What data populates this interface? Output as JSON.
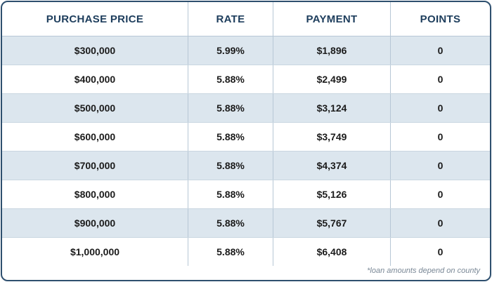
{
  "table": {
    "headers": {
      "purchase_price": "PURCHASE PRICE",
      "rate": "RATE",
      "payment": "PAYMENT",
      "points": "POINTS"
    },
    "rows": [
      {
        "purchase_price": "$300,000",
        "rate": "5.99%",
        "payment": "$1,896",
        "points": "0"
      },
      {
        "purchase_price": "$400,000",
        "rate": "5.88%",
        "payment": "$2,499",
        "points": "0"
      },
      {
        "purchase_price": "$500,000",
        "rate": "5.88%",
        "payment": "$3,124",
        "points": "0"
      },
      {
        "purchase_price": "$600,000",
        "rate": "5.88%",
        "payment": "$3,749",
        "points": "0"
      },
      {
        "purchase_price": "$700,000",
        "rate": "5.88%",
        "payment": "$4,374",
        "points": "0"
      },
      {
        "purchase_price": "$800,000",
        "rate": "5.88%",
        "payment": "$5,126",
        "points": "0"
      },
      {
        "purchase_price": "$900,000",
        "rate": "5.88%",
        "payment": "$5,767",
        "points": "0"
      },
      {
        "purchase_price": "$1,000,000",
        "rate": "5.88%",
        "payment": "$6,408",
        "points": "0"
      }
    ]
  },
  "footnote": "*loan amounts depend on county",
  "colors": {
    "border": "#2e4f6e",
    "header_text": "#1d3d5c",
    "row_shade": "#dce6ee",
    "divider": "#b7c7d5"
  }
}
